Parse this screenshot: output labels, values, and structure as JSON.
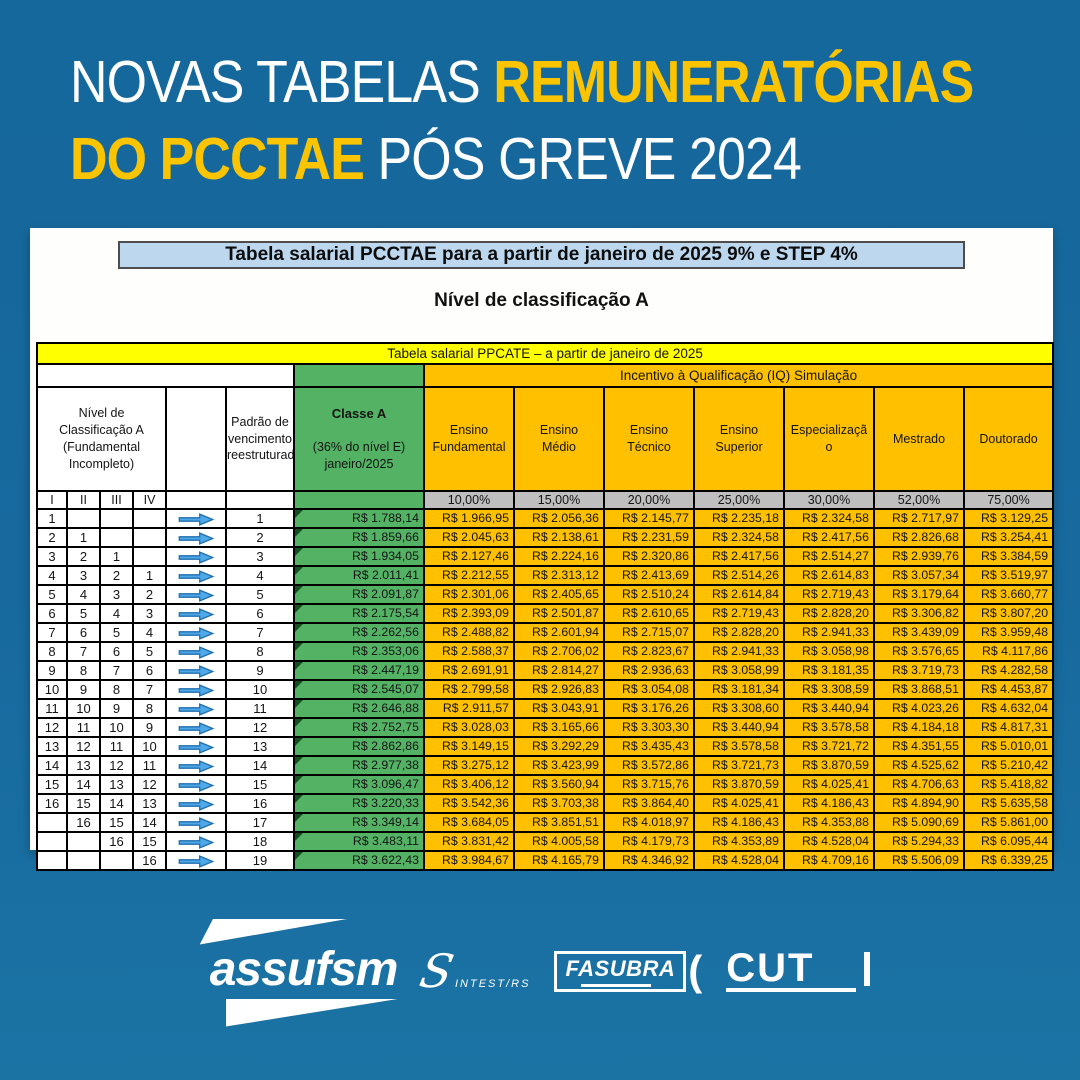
{
  "headline": {
    "line1_white": "NOVAS TABELAS ",
    "line1_yellow": "REMUNERATÓRIAS",
    "line2_yellow": "DO PCCTAE ",
    "line2_white": "PÓS GREVE 2024"
  },
  "card": {
    "banner": "Tabela salarial PCCTAE para a partir de janeiro de 2025 9% e STEP 4%",
    "subtitle": "Nível de classificação A",
    "table": {
      "title_banner": "Tabela salarial PPCATE – a partir de janeiro de 2025",
      "iq_header": "Incentivo à Qualificação (IQ) Simulação",
      "level_header": "Nível de\nClassificação A\n(Fundamental\nIncompleto)",
      "level_cols": [
        "I",
        "II",
        "III",
        "IV"
      ],
      "padrao_header": "Padrão de\nvencimento\nreestruturado",
      "classe_header_title": "Classe A",
      "classe_header_sub": "(36% do nível E)\njaneiro/2025",
      "qual_columns": [
        "Ensino\nFundamental",
        "Ensino\nMédio",
        "Ensino\nTécnico",
        "Ensino\nSuperior",
        "Especializaçã\no",
        "Mestrado",
        "Doutorado"
      ],
      "percentages": [
        "10,00%",
        "15,00%",
        "20,00%",
        "25,00%",
        "30,00%",
        "52,00%",
        "75,00%"
      ],
      "rows": [
        {
          "n": [
            "1",
            "",
            "",
            ""
          ],
          "p": "1",
          "c": "R$ 1.788,14",
          "v": [
            "R$ 1.966,95",
            "R$ 2.056,36",
            "R$ 2.145,77",
            "R$ 2.235,18",
            "R$ 2.324,58",
            "R$ 2.717,97",
            "R$ 3.129,25"
          ]
        },
        {
          "n": [
            "2",
            "1",
            "",
            ""
          ],
          "p": "2",
          "c": "R$ 1.859,66",
          "v": [
            "R$ 2.045,63",
            "R$ 2.138,61",
            "R$ 2.231,59",
            "R$ 2.324,58",
            "R$ 2.417,56",
            "R$ 2.826,68",
            "R$ 3.254,41"
          ]
        },
        {
          "n": [
            "3",
            "2",
            "1",
            ""
          ],
          "p": "3",
          "c": "R$ 1.934,05",
          "v": [
            "R$ 2.127,46",
            "R$ 2.224,16",
            "R$ 2.320,86",
            "R$ 2.417,56",
            "R$ 2.514,27",
            "R$ 2.939,76",
            "R$ 3.384,59"
          ]
        },
        {
          "n": [
            "4",
            "3",
            "2",
            "1"
          ],
          "p": "4",
          "c": "R$ 2.011,41",
          "v": [
            "R$ 2.212,55",
            "R$ 2.313,12",
            "R$ 2.413,69",
            "R$ 2.514,26",
            "R$ 2.614,83",
            "R$ 3.057,34",
            "R$ 3.519,97"
          ]
        },
        {
          "n": [
            "5",
            "4",
            "3",
            "2"
          ],
          "p": "5",
          "c": "R$ 2.091,87",
          "v": [
            "R$ 2.301,06",
            "R$ 2.405,65",
            "R$ 2.510,24",
            "R$ 2.614,84",
            "R$ 2.719,43",
            "R$ 3.179,64",
            "R$ 3.660,77"
          ]
        },
        {
          "n": [
            "6",
            "5",
            "4",
            "3"
          ],
          "p": "6",
          "c": "R$ 2.175,54",
          "v": [
            "R$ 2.393,09",
            "R$ 2.501,87",
            "R$ 2.610,65",
            "R$ 2.719,43",
            "R$ 2.828,20",
            "R$ 3.306,82",
            "R$ 3.807,20"
          ]
        },
        {
          "n": [
            "7",
            "6",
            "5",
            "4"
          ],
          "p": "7",
          "c": "R$ 2.262,56",
          "v": [
            "R$ 2.488,82",
            "R$ 2.601,94",
            "R$ 2.715,07",
            "R$ 2.828,20",
            "R$ 2.941,33",
            "R$ 3.439,09",
            "R$ 3.959,48"
          ]
        },
        {
          "n": [
            "8",
            "7",
            "6",
            "5"
          ],
          "p": "8",
          "c": "R$ 2.353,06",
          "v": [
            "R$ 2.588,37",
            "R$ 2.706,02",
            "R$ 2.823,67",
            "R$ 2.941,33",
            "R$ 3.058,98",
            "R$ 3.576,65",
            "R$ 4.117,86"
          ]
        },
        {
          "n": [
            "9",
            "8",
            "7",
            "6"
          ],
          "p": "9",
          "c": "R$ 2.447,19",
          "v": [
            "R$ 2.691,91",
            "R$ 2.814,27",
            "R$ 2.936,63",
            "R$ 3.058,99",
            "R$ 3.181,35",
            "R$ 3.719,73",
            "R$ 4.282,58"
          ]
        },
        {
          "n": [
            "10",
            "9",
            "8",
            "7"
          ],
          "p": "10",
          "c": "R$ 2.545,07",
          "v": [
            "R$ 2.799,58",
            "R$ 2.926,83",
            "R$ 3.054,08",
            "R$ 3.181,34",
            "R$ 3.308,59",
            "R$ 3.868,51",
            "R$ 4.453,87"
          ]
        },
        {
          "n": [
            "11",
            "10",
            "9",
            "8"
          ],
          "p": "11",
          "c": "R$ 2.646,88",
          "v": [
            "R$ 2.911,57",
            "R$ 3.043,91",
            "R$ 3.176,26",
            "R$ 3.308,60",
            "R$ 3.440,94",
            "R$ 4.023,26",
            "R$ 4.632,04"
          ]
        },
        {
          "n": [
            "12",
            "11",
            "10",
            "9"
          ],
          "p": "12",
          "c": "R$ 2.752,75",
          "v": [
            "R$ 3.028,03",
            "R$ 3.165,66",
            "R$ 3.303,30",
            "R$ 3.440,94",
            "R$ 3.578,58",
            "R$ 4.184,18",
            "R$ 4.817,31"
          ]
        },
        {
          "n": [
            "13",
            "12",
            "11",
            "10"
          ],
          "p": "13",
          "c": "R$ 2.862,86",
          "v": [
            "R$ 3.149,15",
            "R$ 3.292,29",
            "R$ 3.435,43",
            "R$ 3.578,58",
            "R$ 3.721,72",
            "R$ 4.351,55",
            "R$ 5.010,01"
          ]
        },
        {
          "n": [
            "14",
            "13",
            "12",
            "11"
          ],
          "p": "14",
          "c": "R$ 2.977,38",
          "v": [
            "R$ 3.275,12",
            "R$ 3.423,99",
            "R$ 3.572,86",
            "R$ 3.721,73",
            "R$ 3.870,59",
            "R$ 4.525,62",
            "R$ 5.210,42"
          ]
        },
        {
          "n": [
            "15",
            "14",
            "13",
            "12"
          ],
          "p": "15",
          "c": "R$ 3.096,47",
          "v": [
            "R$ 3.406,12",
            "R$ 3.560,94",
            "R$ 3.715,76",
            "R$ 3.870,59",
            "R$ 4.025,41",
            "R$ 4.706,63",
            "R$ 5.418,82"
          ]
        },
        {
          "n": [
            "16",
            "15",
            "14",
            "13"
          ],
          "p": "16",
          "c": "R$ 3.220,33",
          "v": [
            "R$ 3.542,36",
            "R$ 3.703,38",
            "R$ 3.864,40",
            "R$ 4.025,41",
            "R$ 4.186,43",
            "R$ 4.894,90",
            "R$ 5.635,58"
          ]
        },
        {
          "n": [
            "",
            "16",
            "15",
            "14"
          ],
          "p": "17",
          "c": "R$ 3.349,14",
          "v": [
            "R$ 3.684,05",
            "R$ 3.851,51",
            "R$ 4.018,97",
            "R$ 4.186,43",
            "R$ 4.353,88",
            "R$ 5.090,69",
            "R$ 5.861,00"
          ]
        },
        {
          "n": [
            "",
            "",
            "16",
            "15"
          ],
          "p": "18",
          "c": "R$ 3.483,11",
          "v": [
            "R$ 3.831,42",
            "R$ 4.005,58",
            "R$ 4.179,73",
            "R$ 4.353,89",
            "R$ 4.528,04",
            "R$ 5.294,33",
            "R$ 6.095,44"
          ]
        },
        {
          "n": [
            "",
            "",
            "",
            "16"
          ],
          "p": "19",
          "c": "R$ 3.622,43",
          "v": [
            "R$ 3.984,67",
            "R$ 4.165,79",
            "R$ 4.346,92",
            "R$ 4.528,04",
            "R$ 4.709,16",
            "R$ 5.506,09",
            "R$ 6.339,25"
          ]
        }
      ]
    }
  },
  "footer": {
    "assufsm": "assufsm",
    "sintest_big": "S",
    "sintest_small": "INTEST/RS",
    "fasubra": "FASUBRA",
    "fasubra_paren": "(",
    "cut": "CUT"
  },
  "colors": {
    "background_blue": "#17699E",
    "headline_yellow": "#FBC400",
    "banner_light_blue": "#BDD7EE",
    "table_yellow": "#FFFF00",
    "table_orange": "#FFC000",
    "table_green": "#53B264",
    "percent_gray": "#BFBFBF",
    "arrow_blue": "#4FA8E8"
  }
}
